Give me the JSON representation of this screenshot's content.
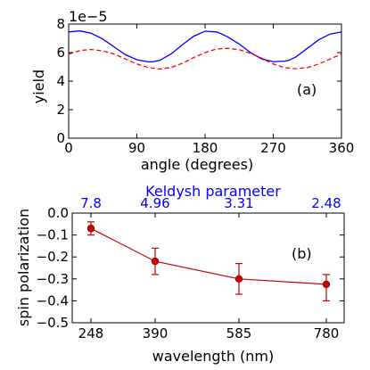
{
  "chart_data": [
    {
      "id": "a",
      "type": "line",
      "annotation": "(a)",
      "xlabel": "angle (degrees)",
      "ylabel": "yield",
      "offset_text": "1e−5",
      "xlim": [
        0,
        360
      ],
      "ylim": [
        0,
        8
      ],
      "scale": 1e-05,
      "xticks": [
        0,
        90,
        180,
        270,
        360
      ],
      "xtick_labels": [
        "0",
        "90",
        "180",
        "270",
        "360"
      ],
      "yticks": [
        0,
        2,
        4,
        6,
        8
      ],
      "ytick_labels": [
        "0",
        "2",
        "4",
        "6",
        "8"
      ],
      "series": [
        {
          "style": "solid",
          "color": "#0000ff",
          "x": [
            0,
            15,
            30,
            45,
            60,
            75,
            90,
            105,
            110,
            120,
            135,
            150,
            165,
            180,
            195,
            200,
            210,
            225,
            240,
            255,
            270,
            285,
            290,
            300,
            315,
            330,
            345,
            360
          ],
          "y": [
            7.45,
            7.52,
            7.35,
            6.95,
            6.4,
            5.85,
            5.5,
            5.35,
            5.35,
            5.45,
            5.9,
            6.55,
            7.15,
            7.5,
            7.45,
            7.35,
            7.1,
            6.6,
            6.0,
            5.55,
            5.37,
            5.4,
            5.45,
            5.7,
            6.3,
            6.9,
            7.3,
            7.45
          ]
        },
        {
          "style": "dashed",
          "color": "#ff0000",
          "x": [
            0,
            15,
            30,
            45,
            60,
            75,
            90,
            105,
            120,
            135,
            150,
            165,
            180,
            195,
            210,
            225,
            240,
            255,
            270,
            285,
            300,
            315,
            330,
            345,
            360
          ],
          "y": [
            5.9,
            6.15,
            6.22,
            6.12,
            5.9,
            5.55,
            5.2,
            4.95,
            4.85,
            4.95,
            5.25,
            5.65,
            6.0,
            6.25,
            6.3,
            6.2,
            5.95,
            5.6,
            5.2,
            4.95,
            4.87,
            4.95,
            5.2,
            5.55,
            5.9
          ]
        }
      ]
    },
    {
      "id": "b",
      "type": "line",
      "annotation": "(b)",
      "xlabel": "wavelength (nm)",
      "ylabel": "spin polarization",
      "top_axis_label": "Keldysh parameter",
      "categories": [
        "248",
        "390",
        "585",
        "780"
      ],
      "top_tick_labels": [
        "7.8",
        "4.96",
        "3.31",
        "2.48"
      ],
      "ylim": [
        -0.5,
        0.0
      ],
      "yticks": [
        0.0,
        -0.1,
        -0.2,
        -0.3,
        -0.4,
        -0.5
      ],
      "ytick_labels": [
        "0.0",
        "−0.1",
        "−0.2",
        "−0.3",
        "−0.4",
        "−0.5"
      ],
      "series": [
        {
          "color": "#cc0000",
          "values": [
            -0.07,
            -0.22,
            -0.3,
            -0.325
          ],
          "error_low": [
            -0.1,
            -0.28,
            -0.37,
            -0.4
          ],
          "error_high": [
            -0.04,
            -0.16,
            -0.23,
            -0.28
          ]
        }
      ]
    }
  ]
}
